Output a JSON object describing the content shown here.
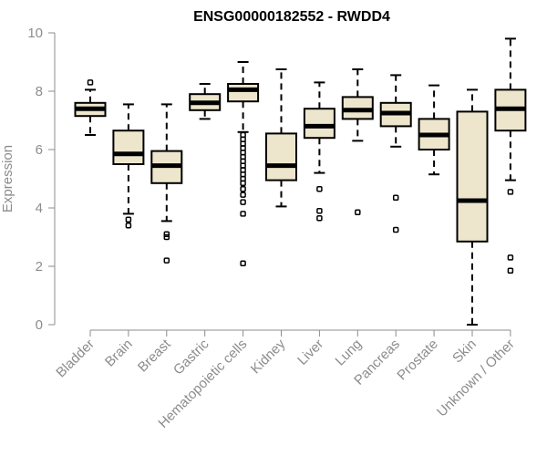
{
  "chart_data": {
    "type": "boxplot",
    "title": "ENSG00000182552 - RWDD4",
    "xlabel": "",
    "ylabel": "Expression",
    "ylim": [
      0,
      10
    ],
    "yticks": [
      0,
      2,
      4,
      6,
      8,
      10
    ],
    "grid": false,
    "colors": {
      "box_fill": "#ede6cc",
      "stroke": "#000000",
      "axis": "#8c8c8c"
    },
    "categories": [
      "Bladder",
      "Brain",
      "Breast",
      "Gastric",
      "Hematopoietic cells",
      "Kidney",
      "Liver",
      "Lung",
      "Pancreas",
      "Prostate",
      "Skin",
      "Unknown / Other"
    ],
    "boxes": [
      {
        "category": "Bladder",
        "min": 6.5,
        "q1": 7.15,
        "median": 7.4,
        "q3": 7.6,
        "max": 8.05,
        "outliers": [
          8.3
        ]
      },
      {
        "category": "Brain",
        "min": 3.8,
        "q1": 5.5,
        "median": 5.85,
        "q3": 6.65,
        "max": 7.55,
        "outliers": [
          3.6,
          3.4
        ]
      },
      {
        "category": "Breast",
        "min": 3.55,
        "q1": 4.85,
        "median": 5.45,
        "q3": 5.95,
        "max": 7.55,
        "outliers": [
          3.1,
          3.0,
          2.2
        ]
      },
      {
        "category": "Gastric",
        "min": 7.05,
        "q1": 7.35,
        "median": 7.6,
        "q3": 7.9,
        "max": 8.25,
        "outliers": []
      },
      {
        "category": "Hematopoietic cells",
        "min": 6.6,
        "q1": 7.65,
        "median": 8.05,
        "q3": 8.25,
        "max": 9.0,
        "outliers": [
          6.5,
          6.35,
          6.2,
          6.05,
          5.9,
          5.75,
          5.6,
          5.45,
          5.3,
          5.15,
          5.0,
          4.85,
          4.65,
          4.45,
          4.2,
          3.8,
          2.1
        ]
      },
      {
        "category": "Kidney",
        "min": 4.05,
        "q1": 4.95,
        "median": 5.45,
        "q3": 6.55,
        "max": 8.75,
        "outliers": []
      },
      {
        "category": "Liver",
        "min": 5.2,
        "q1": 6.4,
        "median": 6.8,
        "q3": 7.4,
        "max": 8.3,
        "outliers": [
          4.65,
          3.9,
          3.65
        ]
      },
      {
        "category": "Lung",
        "min": 6.3,
        "q1": 7.05,
        "median": 7.35,
        "q3": 7.8,
        "max": 8.75,
        "outliers": [
          3.85
        ]
      },
      {
        "category": "Pancreas",
        "min": 6.1,
        "q1": 6.8,
        "median": 7.25,
        "q3": 7.6,
        "max": 8.55,
        "outliers": [
          4.35,
          3.25
        ]
      },
      {
        "category": "Prostate",
        "min": 5.15,
        "q1": 6.0,
        "median": 6.5,
        "q3": 7.05,
        "max": 8.2,
        "outliers": []
      },
      {
        "category": "Skin",
        "min": 0.0,
        "q1": 2.85,
        "median": 4.25,
        "q3": 7.3,
        "max": 8.05,
        "outliers": []
      },
      {
        "category": "Unknown / Other",
        "min": 4.95,
        "q1": 6.65,
        "median": 7.4,
        "q3": 8.05,
        "max": 9.8,
        "outliers": [
          4.55,
          2.3,
          1.85
        ]
      }
    ]
  }
}
